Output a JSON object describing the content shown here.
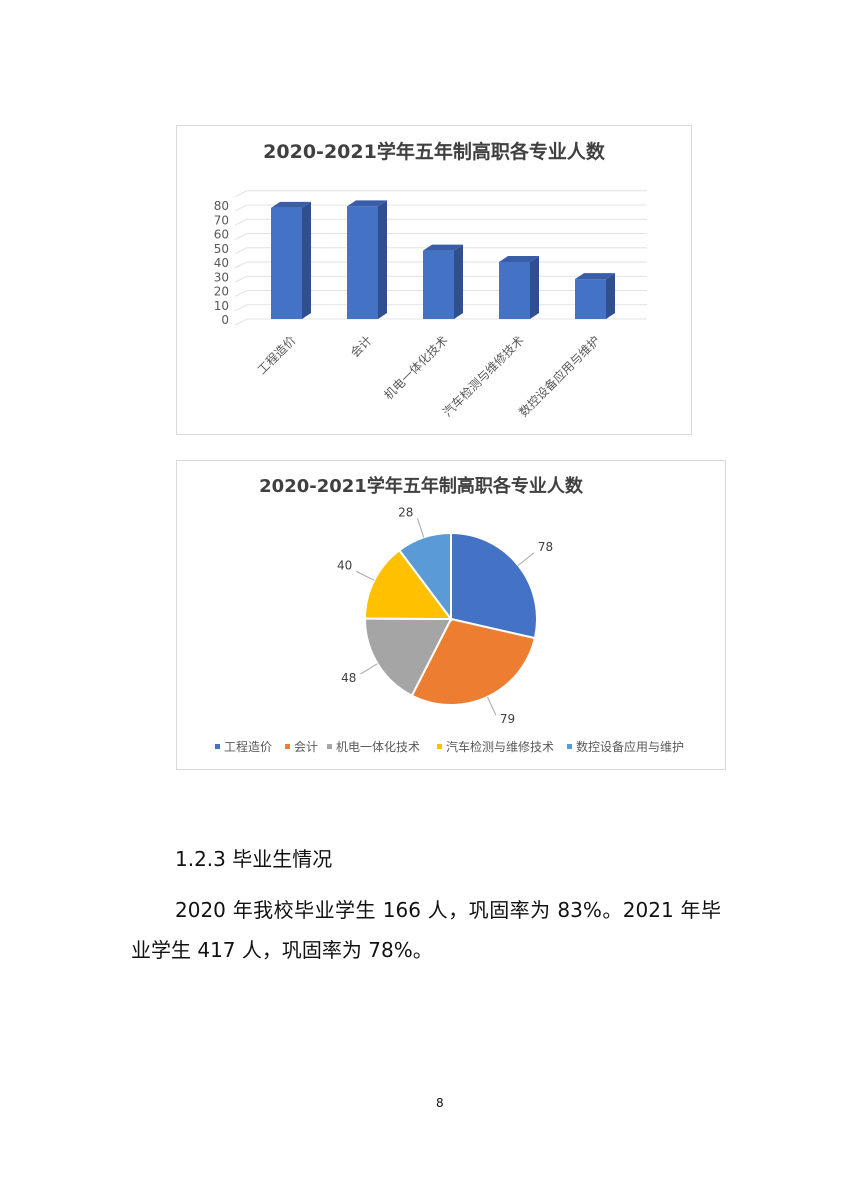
{
  "chart_data": [
    {
      "type": "bar",
      "style": "3d-column",
      "title": "2020-2021学年五年制高职各专业人数",
      "categories": [
        "工程造价",
        "会计",
        "机电一体化技术",
        "汽车检测与维修技术",
        "数控设备应用与维护"
      ],
      "values": [
        78,
        79,
        48,
        40,
        28
      ],
      "yticks": [
        "0",
        "10",
        "20",
        "30",
        "40",
        "50",
        "60",
        "70",
        "80"
      ],
      "ylim": [
        0,
        90
      ],
      "grid": true,
      "color": "#4472C4"
    },
    {
      "type": "pie",
      "title": "2020-2021学年五年制高职各专业人数",
      "categories": [
        "工程造价",
        "会计",
        "机电一体化技术",
        "汽车检测与维修技术",
        "数控设备应用与维护"
      ],
      "values": [
        78,
        79,
        48,
        40,
        28
      ],
      "labels": [
        "78",
        "79",
        "48",
        "40",
        "28"
      ],
      "colors": [
        "#4472C4",
        "#ED7D31",
        "#A5A5A5",
        "#FFC000",
        "#5B9BD5"
      ],
      "legend": "bottom"
    }
  ],
  "section": {
    "heading": "1.2.3 毕业生情况",
    "paragraph": "2020 年我校毕业学生 166 人，巩固率为 83%。2021 年毕业学生 417 人，巩固率为 78%。"
  },
  "page_number": "8"
}
